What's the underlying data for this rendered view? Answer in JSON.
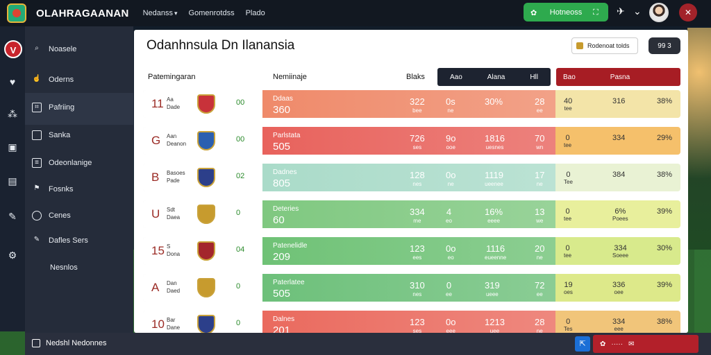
{
  "app": {
    "brand": "OLAHRAGAANAN",
    "nav": [
      "Nedanss",
      "Gomenrotdss",
      "Plado"
    ],
    "cta_label": "Hotneoss"
  },
  "sidebar": {
    "items": [
      {
        "label": "Noasele",
        "icon": "search-icon"
      },
      {
        "label": "Oderns",
        "icon": "hand-icon"
      },
      {
        "label": "Pafriing",
        "icon": "chart-icon"
      },
      {
        "label": "Sanka",
        "icon": "square-icon"
      },
      {
        "label": "Odeonlanige",
        "icon": "calendar-icon"
      },
      {
        "label": "Fosnks",
        "icon": "flag-icon"
      },
      {
        "label": "Cenes",
        "icon": "target-icon"
      },
      {
        "label": "Dafles Sers",
        "icon": "pencil-icon"
      },
      {
        "label": "Nesnlos",
        "icon": "none"
      }
    ],
    "footer_label": "Nedshl Nedonnes"
  },
  "main": {
    "title": "Odanhnsula Dn Ilanansia",
    "filter_label": "Rodenoat tolds",
    "pill_label": "99 3",
    "col_team": "Patemingaran",
    "col_name": "Nemiinaje",
    "col_stat": "Blaks",
    "dark_header": [
      "Aao",
      "Alana",
      "Hll"
    ],
    "red_header": [
      "Bao",
      "Pasna"
    ]
  },
  "rows": [
    {
      "rank": "11",
      "team": "Aa\nDade",
      "mini": "00",
      "sub": "Ddaas",
      "big": "360",
      "v1": "322",
      "v1s": "bee",
      "v2": "0s",
      "v2s": "ne",
      "v3": "30%",
      "v4": "28",
      "v4s": "ee",
      "r1": "40",
      "r1s": "tee",
      "r2": "316",
      "r3": "38%",
      "color": "#ef8a6a",
      "rcolor": "#f3e4a8",
      "crest": "#c8323a"
    },
    {
      "rank": "G",
      "team": "Aan\nDeanon",
      "mini": "00",
      "sub": "Parlstata",
      "big": "505",
      "v1": "726",
      "v1s": "ses",
      "v2": "9o",
      "v2s": "ooe",
      "v3": "1816",
      "v3s": "uesnes",
      "v4": "70",
      "v4s": "wn",
      "r1": "0",
      "r1s": "tee",
      "r2": "334",
      "r3": "29%",
      "color": "#e8625c",
      "rcolor": "#f5c06b",
      "crest": "#2b5fb0"
    },
    {
      "rank": "B",
      "team": "Basoes\nPade",
      "mini": "02",
      "sub": "Dadnes",
      "big": "805",
      "v1": "128",
      "v1s": "nes",
      "v2": "0o",
      "v2s": "ne",
      "v3": "1119",
      "v3s": "ueenee",
      "v4": "17",
      "v4s": "ne",
      "r1": "0",
      "r1s": "Tee",
      "r2": "384",
      "r3": "38%",
      "color": "#aadbc9",
      "rcolor": "#e9f2d4",
      "crest": "#2c3f8a"
    },
    {
      "rank": "U",
      "team": "Sdt\nDaea",
      "mini": "0",
      "sub": "Deteries",
      "big": "60",
      "v1": "334",
      "v1s": "me",
      "v2": "4",
      "v2s": "eo",
      "v3": "16%",
      "v3s": "eeee",
      "v4": "13",
      "v4s": "we",
      "r1": "0",
      "r1s": "tee",
      "r2": "6%",
      "r2s": "Poees",
      "r3": "39%",
      "color": "#7fc880",
      "rcolor": "#e8ef9c",
      "crest": "#c79b2e"
    },
    {
      "rank": "15",
      "team": "S\nDona",
      "mini": "04",
      "sub": "Patenelidle",
      "big": "209",
      "v1": "123",
      "v1s": "ees",
      "v2": "0o",
      "v2s": "eo",
      "v3": "1116",
      "v3s": "eueenne",
      "v4": "20",
      "v4s": "ne",
      "r1": "0",
      "r1s": "tee",
      "r2": "334",
      "r2s": "Soeee",
      "r3": "30%",
      "color": "#6fc276",
      "rcolor": "#d8ea8c",
      "crest": "#a3262c"
    },
    {
      "rank": "A",
      "team": "Dan\nDaed",
      "mini": "0",
      "sub": "Paterlatee",
      "big": "505",
      "v1": "310",
      "v1s": "nes",
      "v2": "0",
      "v2s": "ee",
      "v3": "319",
      "v3s": "ueee",
      "v4": "72",
      "v4s": "ee",
      "r1": "19",
      "r1s": "oes",
      "r2": "336",
      "r2s": "oee",
      "r3": "39%",
      "color": "#6dc07a",
      "rcolor": "#dde98a",
      "crest": "#c79b2e"
    },
    {
      "rank": "10",
      "team": "Bar\nDane",
      "mini": "0",
      "sub": "Dalnes",
      "big": "201",
      "v1": "123",
      "v1s": "ses",
      "v2": "0o",
      "v2s": "eee",
      "v3": "1213",
      "v3s": "uee",
      "v4": "28",
      "v4s": "ne",
      "r1": "0",
      "r1s": "Tes",
      "r2": "334",
      "r2s": "eee",
      "r3": "38%",
      "color": "#ea6a5e",
      "rcolor": "#f1c57a",
      "crest": "#2c3f8a"
    }
  ]
}
